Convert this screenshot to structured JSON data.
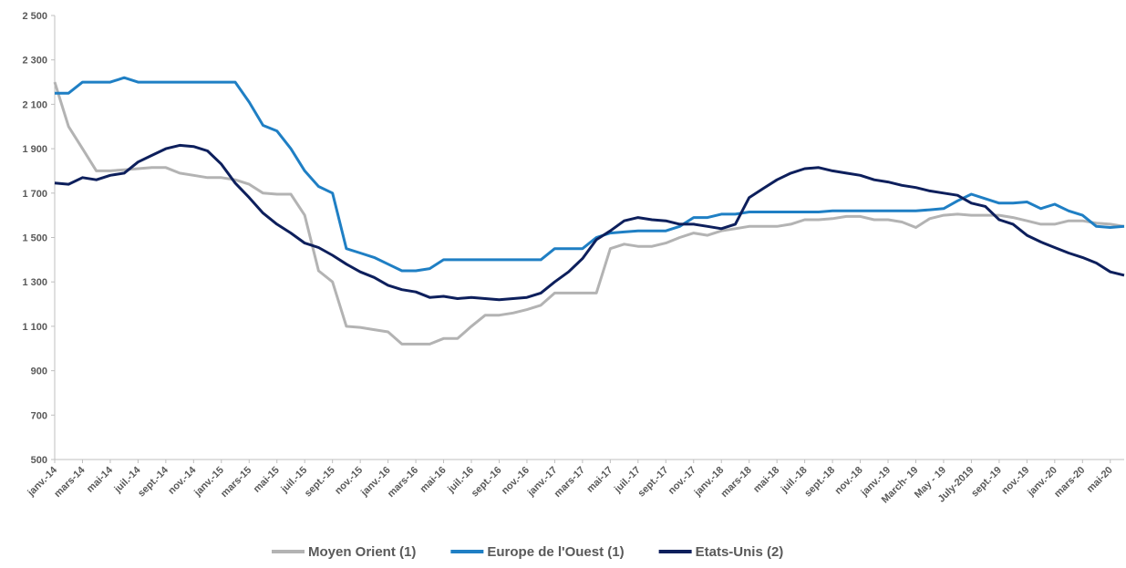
{
  "chart_data": {
    "type": "line",
    "categories": [
      "janv.-14",
      null,
      "mars-14",
      null,
      "mai-14",
      null,
      "juil.-14",
      null,
      "sept.-14",
      null,
      "nov.-14",
      null,
      "janv.-15",
      null,
      "mars-15",
      null,
      "mai-15",
      null,
      "juil.-15",
      null,
      "sept.-15",
      null,
      "nov.-15",
      null,
      "janv.-16",
      null,
      "mars-16",
      null,
      "mai-16",
      null,
      "juil.-16",
      null,
      "sept.-16",
      null,
      "nov.-16",
      null,
      "janv.-17",
      null,
      "mars-17",
      null,
      "mai-17",
      null,
      "juil.-17",
      null,
      "sept.-17",
      null,
      "nov.-17",
      null,
      "janv.-18",
      null,
      "mars-18",
      null,
      "mai-18",
      null,
      "juil.-18",
      null,
      "sept.-18",
      null,
      "nov.-18",
      null,
      "janv.-19",
      null,
      "March- 19",
      null,
      "May - 19",
      null,
      "July-2019",
      null,
      "sept.-19",
      null,
      "nov.-19",
      null,
      "janv.-20",
      null,
      "mars-20",
      null,
      "mai-20",
      null
    ],
    "series": [
      {
        "name": "Moyen Orient (1)",
        "color": "#b3b3b3",
        "values": [
          2200,
          2000,
          1900,
          1800,
          1800,
          1805,
          1810,
          1815,
          1815,
          1790,
          1780,
          1770,
          1770,
          1760,
          1740,
          1700,
          1695,
          1695,
          1600,
          1350,
          1300,
          1100,
          1095,
          1085,
          1075,
          1020,
          1020,
          1020,
          1045,
          1045,
          1100,
          1150,
          1150,
          1160,
          1175,
          1195,
          1250,
          1250,
          1250,
          1250,
          1450,
          1470,
          1460,
          1460,
          1475,
          1500,
          1520,
          1510,
          1530,
          1540,
          1550,
          1550,
          1550,
          1560,
          1580,
          1580,
          1585,
          1595,
          1595,
          1580,
          1580,
          1570,
          1545,
          1585,
          1600,
          1605,
          1600,
          1600,
          1600,
          1590,
          1575,
          1560,
          1560,
          1575,
          1575,
          1565,
          1560,
          1550
        ]
      },
      {
        "name": "Europe de l'Ouest (1)",
        "color": "#1f7fc4",
        "values": [
          2150,
          2150,
          2200,
          2200,
          2200,
          2220,
          2200,
          2200,
          2200,
          2200,
          2200,
          2200,
          2200,
          2200,
          2110,
          2005,
          1980,
          1900,
          1800,
          1730,
          1700,
          1450,
          1430,
          1410,
          1380,
          1350,
          1350,
          1360,
          1400,
          1400,
          1400,
          1400,
          1400,
          1400,
          1400,
          1400,
          1450,
          1450,
          1450,
          1500,
          1520,
          1525,
          1530,
          1530,
          1530,
          1550,
          1590,
          1590,
          1605,
          1605,
          1615,
          1615,
          1615,
          1615,
          1615,
          1615,
          1620,
          1620,
          1620,
          1620,
          1620,
          1620,
          1620,
          1625,
          1630,
          1665,
          1695,
          1675,
          1655,
          1655,
          1660,
          1630,
          1650,
          1620,
          1600,
          1550,
          1545,
          1550
        ]
      },
      {
        "name": "Etats-Unis (2)",
        "color": "#0d1f5c",
        "values": [
          1745,
          1740,
          1770,
          1760,
          1780,
          1790,
          1840,
          1870,
          1900,
          1915,
          1910,
          1890,
          1830,
          1745,
          1680,
          1610,
          1560,
          1520,
          1475,
          1455,
          1420,
          1380,
          1345,
          1320,
          1285,
          1265,
          1255,
          1230,
          1235,
          1225,
          1230,
          1225,
          1220,
          1225,
          1230,
          1250,
          1300,
          1345,
          1405,
          1490,
          1530,
          1575,
          1590,
          1580,
          1575,
          1560,
          1560,
          1550,
          1540,
          1560,
          1680,
          1720,
          1760,
          1790,
          1810,
          1815,
          1800,
          1790,
          1780,
          1760,
          1750,
          1735,
          1725,
          1710,
          1700,
          1690,
          1655,
          1640,
          1580,
          1560,
          1510,
          1480,
          1455,
          1430,
          1410,
          1385,
          1345,
          1330
        ]
      }
    ],
    "ylim": [
      500,
      2500
    ],
    "yticks": [
      500,
      700,
      900,
      {
        "value": 1100,
        "label": "1 100"
      },
      {
        "value": 1300,
        "label": "1 300"
      },
      {
        "value": 1500,
        "label": "1 500"
      },
      {
        "value": 1700,
        "label": "1 700"
      },
      {
        "value": 1900,
        "label": "1 900"
      },
      {
        "value": 2100,
        "label": "2 100"
      },
      {
        "value": 2300,
        "label": "2 300"
      },
      {
        "value": 2500,
        "label": "2 500"
      }
    ],
    "grid": false,
    "legend": "bottom"
  }
}
